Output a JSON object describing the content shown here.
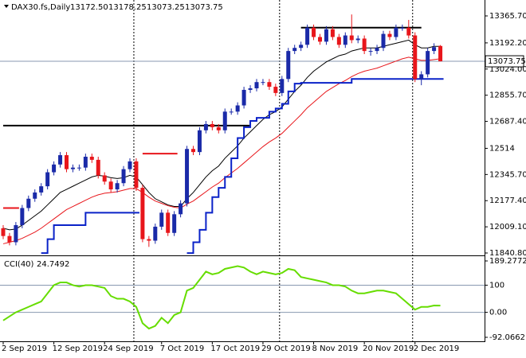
{
  "chart_data": [
    {
      "type": "candlestick",
      "symbol": "DAX30.fs,Daily",
      "header_values": [
        "13172.50",
        "13178.25",
        "13073.25",
        "13073.75"
      ],
      "categories": [
        "2 Sep 2019",
        null,
        null,
        null,
        null,
        null,
        null,
        null,
        "12 Sep 2019",
        null,
        null,
        null,
        null,
        null,
        null,
        null,
        "24 Sep 2019",
        null,
        null,
        null,
        null,
        null,
        null,
        null,
        null,
        "7 Oct 2019",
        null,
        null,
        null,
        null,
        null,
        null,
        null,
        "17 Oct 2019",
        null,
        null,
        null,
        null,
        null,
        null,
        null,
        "29 Oct 2019",
        null,
        null,
        null,
        null,
        null,
        null,
        null,
        "8 Nov 2019",
        null,
        null,
        null,
        null,
        null,
        null,
        null,
        "20 Nov 2019",
        null,
        null,
        null,
        null,
        null,
        null,
        null,
        "2 Dec 2019",
        null,
        null,
        null,
        null
      ],
      "open": [
        12000,
        11950,
        11910,
        12020,
        12130,
        12190,
        12230,
        12270,
        12360,
        12410,
        12470,
        12380,
        12390,
        12390,
        12460,
        12440,
        12340,
        12300,
        12250,
        12290,
        12380,
        12430,
        12260,
        11930,
        11920,
        12010,
        12100,
        11970,
        12090,
        12160,
        12510,
        12490,
        12630,
        12670,
        12650,
        12630,
        12750,
        12750,
        12790,
        12890,
        12900,
        12940,
        12940,
        12910,
        12870,
        12960,
        13140,
        13160,
        13180,
        13290,
        13230,
        13200,
        13280,
        13230,
        13180,
        13240,
        13210,
        13220,
        13140,
        13140,
        13160,
        13250,
        13230,
        13290,
        13290,
        13240,
        12960,
        12990,
        13140,
        13172.5
      ],
      "high": [
        12020,
        11970,
        12040,
        12150,
        12210,
        12250,
        12290,
        12380,
        12430,
        12490,
        12490,
        12410,
        12410,
        12480,
        12480,
        12460,
        12360,
        12320,
        12310,
        12400,
        12450,
        12450,
        12280,
        11950,
        12030,
        12120,
        12120,
        12110,
        12180,
        12530,
        12530,
        12650,
        12690,
        12690,
        12670,
        12770,
        12770,
        12810,
        12910,
        12920,
        12960,
        12960,
        12960,
        12930,
        12980,
        13160,
        13180,
        13200,
        13310,
        13310,
        13250,
        13300,
        13300,
        13250,
        13260,
        13375,
        13240,
        13240,
        13160,
        13180,
        13270,
        13270,
        13310,
        13310,
        13340,
        13260,
        13010,
        13160,
        13190,
        13178.25
      ],
      "low": [
        11930,
        11890,
        11890,
        12000,
        12110,
        12170,
        12210,
        12250,
        12340,
        12390,
        12360,
        12360,
        12370,
        12370,
        12420,
        12320,
        12280,
        12230,
        12230,
        12270,
        12360,
        12240,
        11910,
        11880,
        11900,
        11990,
        11950,
        11950,
        12070,
        12140,
        12470,
        12470,
        12610,
        12630,
        12610,
        12610,
        12730,
        12730,
        12770,
        12870,
        12880,
        12920,
        12890,
        12850,
        12850,
        12940,
        13120,
        13140,
        13160,
        13210,
        13180,
        13180,
        13210,
        13160,
        13160,
        13190,
        13190,
        13120,
        13110,
        13120,
        13140,
        13210,
        13210,
        13270,
        13220,
        12940,
        12920,
        12970,
        13120,
        13073.25
      ],
      "close": [
        11950,
        11910,
        12020,
        12130,
        12190,
        12230,
        12270,
        12360,
        12410,
        12470,
        12380,
        12390,
        12390,
        12460,
        12440,
        12340,
        12300,
        12250,
        12290,
        12380,
        12430,
        12260,
        11930,
        11920,
        12010,
        12100,
        11970,
        12090,
        12160,
        12510,
        12490,
        12630,
        12670,
        12650,
        12630,
        12750,
        12750,
        12790,
        12890,
        12900,
        12940,
        12940,
        12910,
        12870,
        12960,
        13140,
        13160,
        13180,
        13290,
        13230,
        13200,
        13280,
        13230,
        13180,
        13240,
        13210,
        13220,
        13140,
        13140,
        13160,
        13250,
        13230,
        13290,
        13290,
        13240,
        12960,
        12990,
        13140,
        13165,
        13073.75
      ],
      "up_color": "#1a2aa8",
      "down_color": "#e8161b",
      "lines": [
        {
          "color": "#000000",
          "values": [
            12000,
            11990,
            11995,
            12020,
            12050,
            12080,
            12110,
            12150,
            12190,
            12230,
            12250,
            12270,
            12290,
            12310,
            12330,
            12340,
            12335,
            12325,
            12320,
            12325,
            12340,
            12330,
            12280,
            12230,
            12190,
            12170,
            12150,
            12140,
            12140,
            12190,
            12230,
            12280,
            12330,
            12370,
            12400,
            12450,
            12490,
            12530,
            12580,
            12620,
            12660,
            12700,
            12730,
            12750,
            12780,
            12830,
            12880,
            12920,
            12970,
            13010,
            13040,
            13070,
            13090,
            13110,
            13120,
            13140,
            13150,
            13160,
            13160,
            13160,
            13170,
            13180,
            13190,
            13200,
            13210,
            13180,
            13160,
            13160,
            13170,
            13170
          ]
        },
        {
          "color": "#e8161b",
          "values": [
            11900,
            11910,
            11920,
            11935,
            11955,
            11975,
            12000,
            12030,
            12060,
            12090,
            12120,
            12140,
            12160,
            12180,
            12200,
            12215,
            12225,
            12230,
            12235,
            12245,
            12255,
            12255,
            12230,
            12200,
            12175,
            12160,
            12145,
            12135,
            12130,
            12155,
            12175,
            12205,
            12235,
            12265,
            12290,
            12325,
            12355,
            12385,
            12420,
            12455,
            12490,
            12525,
            12555,
            12580,
            12610,
            12650,
            12690,
            12730,
            12775,
            12810,
            12845,
            12880,
            12905,
            12930,
            12950,
            12975,
            12995,
            13010,
            13020,
            13030,
            13045,
            13060,
            13075,
            13090,
            13100,
            13090,
            13080,
            13080,
            13085,
            13090
          ]
        },
        {
          "color": "#0a22c8",
          "step": true,
          "values": [
            null,
            null,
            null,
            null,
            null,
            null,
            11840,
            11930,
            12020,
            12020,
            12020,
            12020,
            12020,
            12100,
            12100,
            12100,
            12100,
            12100,
            12100,
            12100,
            12100,
            12100,
            null,
            null,
            null,
            null,
            null,
            null,
            null,
            11840,
            11910,
            11990,
            12100,
            12200,
            12260,
            12330,
            12450,
            12580,
            12650,
            12690,
            12710,
            12710,
            12750,
            12770,
            12800,
            12880,
            12930,
            12935,
            12935,
            12935,
            12935,
            12935,
            12935,
            12935,
            12935,
            12960,
            12960,
            12960,
            12960,
            12960,
            12960,
            12960,
            12960,
            12960,
            12960,
            12960,
            12960,
            12960,
            12960,
            12960
          ]
        },
        {
          "color": "#e8161b",
          "step": true,
          "values": [
            12130,
            12130,
            12130,
            null,
            null,
            null,
            null,
            null,
            null,
            null,
            null,
            null,
            null,
            null,
            null,
            null,
            null,
            null,
            null,
            null,
            null,
            null,
            12480,
            12480,
            12480,
            12480,
            12480,
            12480,
            null,
            null,
            null,
            null,
            null,
            null,
            null,
            null,
            null,
            null,
            null,
            null,
            null,
            null,
            null,
            null,
            null,
            null,
            null,
            null,
            null,
            null,
            null,
            null,
            null,
            null,
            null,
            null,
            null,
            null,
            null,
            null,
            null,
            null,
            null,
            null,
            null,
            null,
            null,
            null,
            null,
            null
          ]
        }
      ],
      "levels": [
        {
          "value": 12660,
          "from": 0,
          "to": 39
        },
        {
          "value": 13290,
          "from": 47,
          "to": 66
        }
      ],
      "period_separators": [
        21,
        44,
        65
      ],
      "ylim": [
        11830.6,
        13457.8
      ],
      "yticks": [
        {
          "value": 13365.7,
          "label": "13365.70"
        },
        {
          "value": 13192.2,
          "label": "13192.20"
        },
        {
          "value": 13024,
          "label": "13024.00"
        },
        {
          "value": 12855.7,
          "label": "12855.70"
        },
        {
          "value": 12687.4,
          "label": "12687.40"
        },
        12514,
        {
          "value": 12345.7,
          "label": "12345.70"
        },
        {
          "value": 12177.4,
          "label": "12177.40"
        },
        {
          "value": 12009.1,
          "label": "12009.10"
        },
        {
          "value": 11840.8,
          "label": "11840.80"
        }
      ]
    },
    {
      "type": "line",
      "title": "CCI(40)",
      "color": "#66dd00",
      "values": [
        -30,
        -15,
        0,
        10,
        20,
        30,
        40,
        70,
        100,
        110,
        110,
        100,
        95,
        100,
        100,
        95,
        90,
        60,
        50,
        50,
        40,
        20,
        -40,
        -60,
        -50,
        -20,
        -40,
        -10,
        0,
        80,
        90,
        120,
        150,
        140,
        145,
        160,
        165,
        170,
        165,
        150,
        140,
        150,
        145,
        140,
        145,
        160,
        155,
        130,
        125,
        120,
        115,
        110,
        100,
        100,
        95,
        80,
        70,
        70,
        75,
        80,
        80,
        75,
        70,
        50,
        30,
        10,
        20,
        20,
        25,
        24.7492
      ],
      "ylim": [
        -92.0662,
        189.2772
      ],
      "yticks": [
        189.2772,
        100,
        {
          "value": 0,
          "label": "0.00"
        },
        -92.0662
      ]
    }
  ]
}
